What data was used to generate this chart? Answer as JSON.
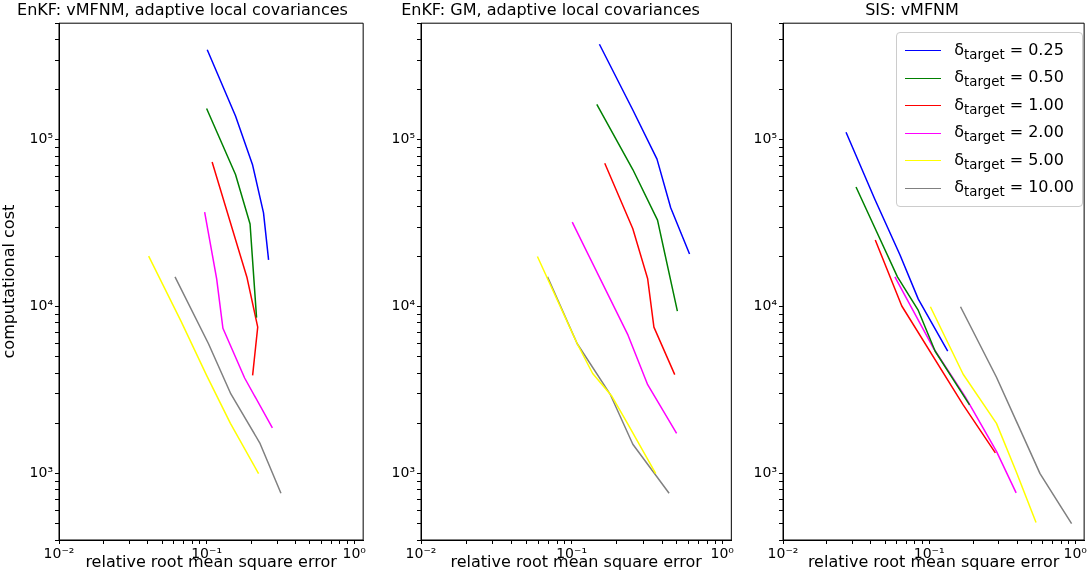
{
  "chart_data": [
    {
      "type": "line",
      "title": "EnKF: vMFNM, adaptive local covariances",
      "xlabel": "relative root mean square error",
      "ylabel": "computational cost",
      "log": "xy",
      "marker": "none",
      "line_style": "solid",
      "grid": false,
      "xlim": [
        0.01,
        1.15
      ],
      "ylim": [
        400,
        500000
      ],
      "xticks": [
        {
          "value": 0.01,
          "label": "10⁻²"
        },
        {
          "value": 0.02,
          "label": null
        },
        {
          "value": 0.03,
          "label": null
        },
        {
          "value": 0.04,
          "label": null
        },
        {
          "value": 0.05,
          "label": null
        },
        {
          "value": 0.06,
          "label": null
        },
        {
          "value": 0.07,
          "label": null
        },
        {
          "value": 0.08,
          "label": null
        },
        {
          "value": 0.09,
          "label": null
        },
        {
          "value": 0.1,
          "label": "10⁻¹"
        },
        {
          "value": 0.2,
          "label": null
        },
        {
          "value": 0.3,
          "label": null
        },
        {
          "value": 0.4,
          "label": null
        },
        {
          "value": 0.5,
          "label": null
        },
        {
          "value": 0.6,
          "label": null
        },
        {
          "value": 0.7,
          "label": null
        },
        {
          "value": 0.8,
          "label": null
        },
        {
          "value": 0.9,
          "label": null
        },
        {
          "value": 1,
          "label": "10⁰"
        }
      ],
      "yticks": [
        {
          "value": 400,
          "label": null
        },
        {
          "value": 500,
          "label": null
        },
        {
          "value": 600,
          "label": null
        },
        {
          "value": 700,
          "label": null
        },
        {
          "value": 800,
          "label": null
        },
        {
          "value": 900,
          "label": null
        },
        {
          "value": 1000,
          "label": "10³"
        },
        {
          "value": 2000,
          "label": null
        },
        {
          "value": 3000,
          "label": null
        },
        {
          "value": 4000,
          "label": null
        },
        {
          "value": 5000,
          "label": null
        },
        {
          "value": 6000,
          "label": null
        },
        {
          "value": 7000,
          "label": null
        },
        {
          "value": 8000,
          "label": null
        },
        {
          "value": 9000,
          "label": null
        },
        {
          "value": 10000,
          "label": "10⁴"
        },
        {
          "value": 20000,
          "label": null
        },
        {
          "value": 30000,
          "label": null
        },
        {
          "value": 40000,
          "label": null
        },
        {
          "value": 50000,
          "label": null
        },
        {
          "value": 60000,
          "label": null
        },
        {
          "value": 70000,
          "label": null
        },
        {
          "value": 80000,
          "label": null
        },
        {
          "value": 90000,
          "label": null
        },
        {
          "value": 100000,
          "label": "10⁵"
        },
        {
          "value": 200000,
          "label": null
        },
        {
          "value": 300000,
          "label": null
        },
        {
          "value": 400000,
          "label": null
        },
        {
          "value": 500000,
          "label": null
        }
      ],
      "series": [
        {
          "color": "#0000ff",
          "x": [
            0.101,
            0.157,
            0.205,
            0.243,
            0.263
          ],
          "values": [
            347000,
            139000,
            70600,
            36500,
            19100
          ]
        },
        {
          "color": "#008000",
          "x": [
            0.1,
            0.157,
            0.197,
            0.218
          ],
          "values": [
            154000,
            62000,
            31300,
            8600
          ]
        },
        {
          "color": "#ff0000",
          "x": [
            0.109,
            0.188,
            0.222,
            0.205
          ],
          "values": [
            73600,
            14900,
            7550,
            3880
          ]
        },
        {
          "color": "#ff00ff",
          "x": [
            0.097,
            0.117,
            0.129,
            0.181,
            0.279
          ],
          "values": [
            36900,
            14700,
            7430,
            3740,
            1880
          ]
        },
        {
          "color": "#ffff00",
          "x": [
            0.0405,
            0.0673,
            0.1,
            0.145,
            0.225
          ],
          "values": [
            20100,
            8150,
            3880,
            2000,
            1000
          ]
        },
        {
          "color": "#808080",
          "x": [
            0.0611,
            0.103,
            0.146,
            0.229,
            0.319
          ],
          "values": [
            15100,
            6000,
            3000,
            1530,
            762
          ]
        }
      ]
    },
    {
      "type": "line",
      "title": "EnKF: GM, adaptive local covariances",
      "xlabel": "relative root mean square error",
      "log": "xy",
      "marker": "none",
      "line_style": "solid",
      "grid": false,
      "xlim": [
        0.01,
        1.15
      ],
      "ylim": [
        400,
        500000
      ],
      "xticks": [
        {
          "value": 0.01,
          "label": "10⁻²"
        },
        {
          "value": 0.02,
          "label": null
        },
        {
          "value": 0.03,
          "label": null
        },
        {
          "value": 0.04,
          "label": null
        },
        {
          "value": 0.05,
          "label": null
        },
        {
          "value": 0.06,
          "label": null
        },
        {
          "value": 0.07,
          "label": null
        },
        {
          "value": 0.08,
          "label": null
        },
        {
          "value": 0.09,
          "label": null
        },
        {
          "value": 0.1,
          "label": "10⁻¹"
        },
        {
          "value": 0.2,
          "label": null
        },
        {
          "value": 0.3,
          "label": null
        },
        {
          "value": 0.4,
          "label": null
        },
        {
          "value": 0.5,
          "label": null
        },
        {
          "value": 0.6,
          "label": null
        },
        {
          "value": 0.7,
          "label": null
        },
        {
          "value": 0.8,
          "label": null
        },
        {
          "value": 0.9,
          "label": null
        },
        {
          "value": 1,
          "label": "10⁰"
        }
      ],
      "yticks": [
        {
          "value": 400,
          "label": null
        },
        {
          "value": 500,
          "label": null
        },
        {
          "value": 600,
          "label": null
        },
        {
          "value": 700,
          "label": null
        },
        {
          "value": 800,
          "label": null
        },
        {
          "value": 900,
          "label": null
        },
        {
          "value": 1000,
          "label": "10³"
        },
        {
          "value": 2000,
          "label": null
        },
        {
          "value": 3000,
          "label": null
        },
        {
          "value": 4000,
          "label": null
        },
        {
          "value": 5000,
          "label": null
        },
        {
          "value": 6000,
          "label": null
        },
        {
          "value": 7000,
          "label": null
        },
        {
          "value": 8000,
          "label": null
        },
        {
          "value": 9000,
          "label": null
        },
        {
          "value": 10000,
          "label": "10⁴"
        },
        {
          "value": 20000,
          "label": null
        },
        {
          "value": 30000,
          "label": null
        },
        {
          "value": 40000,
          "label": null
        },
        {
          "value": 50000,
          "label": null
        },
        {
          "value": 60000,
          "label": null
        },
        {
          "value": 70000,
          "label": null
        },
        {
          "value": 80000,
          "label": null
        },
        {
          "value": 90000,
          "label": null
        },
        {
          "value": 100000,
          "label": "10⁵"
        },
        {
          "value": 200000,
          "label": null
        },
        {
          "value": 300000,
          "label": null
        },
        {
          "value": 400000,
          "label": null
        },
        {
          "value": 500000,
          "label": null
        }
      ],
      "series": [
        {
          "color": "#0000ff",
          "x": [
            0.153,
            0.255,
            0.369,
            0.455,
            0.607
          ],
          "values": [
            374000,
            151000,
            76600,
            39200,
            20700
          ]
        },
        {
          "color": "#008000",
          "x": [
            0.147,
            0.255,
            0.372,
            0.504
          ],
          "values": [
            163000,
            66400,
            33000,
            9400
          ]
        },
        {
          "color": "#ff0000",
          "x": [
            0.166,
            0.255,
            0.32,
            0.352,
            0.484
          ],
          "values": [
            72400,
            29300,
            14700,
            7550,
            3920
          ]
        },
        {
          "color": "#ff00ff",
          "x": [
            0.101,
            0.237,
            0.32,
            0.498
          ],
          "values": [
            32100,
            6750,
            3410,
            1740
          ]
        },
        {
          "color": "#ffff00",
          "x": [
            0.0593,
            0.109,
            0.138,
            0.184,
            0.237,
            0.362
          ],
          "values": [
            20000,
            6000,
            3980,
            2930,
            1970,
            1000
          ]
        },
        {
          "color": "#808080",
          "x": [
            0.0692,
            0.109,
            0.181,
            0.255,
            0.444
          ],
          "values": [
            15100,
            6000,
            2970,
            1500,
            762
          ]
        }
      ]
    },
    {
      "type": "line",
      "title": "SIS: vMFNM",
      "xlabel": "relative root mean square error",
      "log": "xy",
      "marker": "none",
      "line_style": "solid",
      "grid": false,
      "legend": "top right",
      "xlim": [
        0.01,
        1.15
      ],
      "ylim": [
        400,
        500000
      ],
      "xticks": [
        {
          "value": 0.01,
          "label": "10⁻²"
        },
        {
          "value": 0.02,
          "label": null
        },
        {
          "value": 0.03,
          "label": null
        },
        {
          "value": 0.04,
          "label": null
        },
        {
          "value": 0.05,
          "label": null
        },
        {
          "value": 0.06,
          "label": null
        },
        {
          "value": 0.07,
          "label": null
        },
        {
          "value": 0.08,
          "label": null
        },
        {
          "value": 0.09,
          "label": null
        },
        {
          "value": 0.1,
          "label": "10⁻¹"
        },
        {
          "value": 0.2,
          "label": null
        },
        {
          "value": 0.3,
          "label": null
        },
        {
          "value": 0.4,
          "label": null
        },
        {
          "value": 0.5,
          "label": null
        },
        {
          "value": 0.6,
          "label": null
        },
        {
          "value": 0.7,
          "label": null
        },
        {
          "value": 0.8,
          "label": null
        },
        {
          "value": 0.9,
          "label": null
        },
        {
          "value": 1,
          "label": "10⁰"
        }
      ],
      "yticks": [
        {
          "value": 400,
          "label": null
        },
        {
          "value": 500,
          "label": null
        },
        {
          "value": 600,
          "label": null
        },
        {
          "value": 700,
          "label": null
        },
        {
          "value": 800,
          "label": null
        },
        {
          "value": 900,
          "label": null
        },
        {
          "value": 1000,
          "label": "10³"
        },
        {
          "value": 2000,
          "label": null
        },
        {
          "value": 3000,
          "label": null
        },
        {
          "value": 4000,
          "label": null
        },
        {
          "value": 5000,
          "label": null
        },
        {
          "value": 6000,
          "label": null
        },
        {
          "value": 7000,
          "label": null
        },
        {
          "value": 8000,
          "label": null
        },
        {
          "value": 9000,
          "label": null
        },
        {
          "value": 10000,
          "label": "10⁴"
        },
        {
          "value": 20000,
          "label": null
        },
        {
          "value": 30000,
          "label": null
        },
        {
          "value": 40000,
          "label": null
        },
        {
          "value": 50000,
          "label": null
        },
        {
          "value": 60000,
          "label": null
        },
        {
          "value": 70000,
          "label": null
        },
        {
          "value": 80000,
          "label": null
        },
        {
          "value": 90000,
          "label": null
        },
        {
          "value": 100000,
          "label": "10⁵"
        },
        {
          "value": 200000,
          "label": null
        },
        {
          "value": 300000,
          "label": null
        },
        {
          "value": 400000,
          "label": null
        },
        {
          "value": 500000,
          "label": null
        }
      ],
      "series": [
        {
          "name": "δ$_{target}$ = 0.25",
          "color": "#0000ff",
          "x": [
            0.027,
            0.0425,
            0.0631,
            0.0843,
            0.134
          ],
          "values": [
            111000,
            44100,
            20500,
            11100,
            5410
          ]
        },
        {
          "name": "δ$_{target}$ = 0.50",
          "color": "#008000",
          "x": [
            0.0316,
            0.0607,
            0.0843,
            0.11,
            0.189
          ],
          "values": [
            52200,
            15100,
            9500,
            5410,
            2580
          ]
        },
        {
          "name": "δ$_{target}$ = 1.00",
          "color": "#ff0000",
          "x": [
            0.0428,
            0.065,
            0.171,
            0.284
          ],
          "values": [
            25100,
            10100,
            2580,
            1330
          ]
        },
        {
          "name": "δ$_{target}$ = 2.00",
          "color": "#ff00ff",
          "x": [
            0.0583,
            0.107,
            0.176,
            0.289,
            0.394
          ],
          "values": [
            15100,
            5640,
            2900,
            1360,
            766
          ]
        },
        {
          "name": "δ$_{target}$ = 5.00",
          "color": "#ffff00",
          "x": [
            0.102,
            0.171,
            0.289,
            0.394,
            0.539
          ],
          "values": [
            10000,
            3940,
            2000,
            1030,
            509
          ]
        },
        {
          "name": "δ$_{target}$ = 10.00",
          "color": "#808080",
          "x": [
            0.164,
            0.289,
            0.574,
            0.944
          ],
          "values": [
            10000,
            3780,
            1000,
            501
          ]
        }
      ]
    }
  ]
}
